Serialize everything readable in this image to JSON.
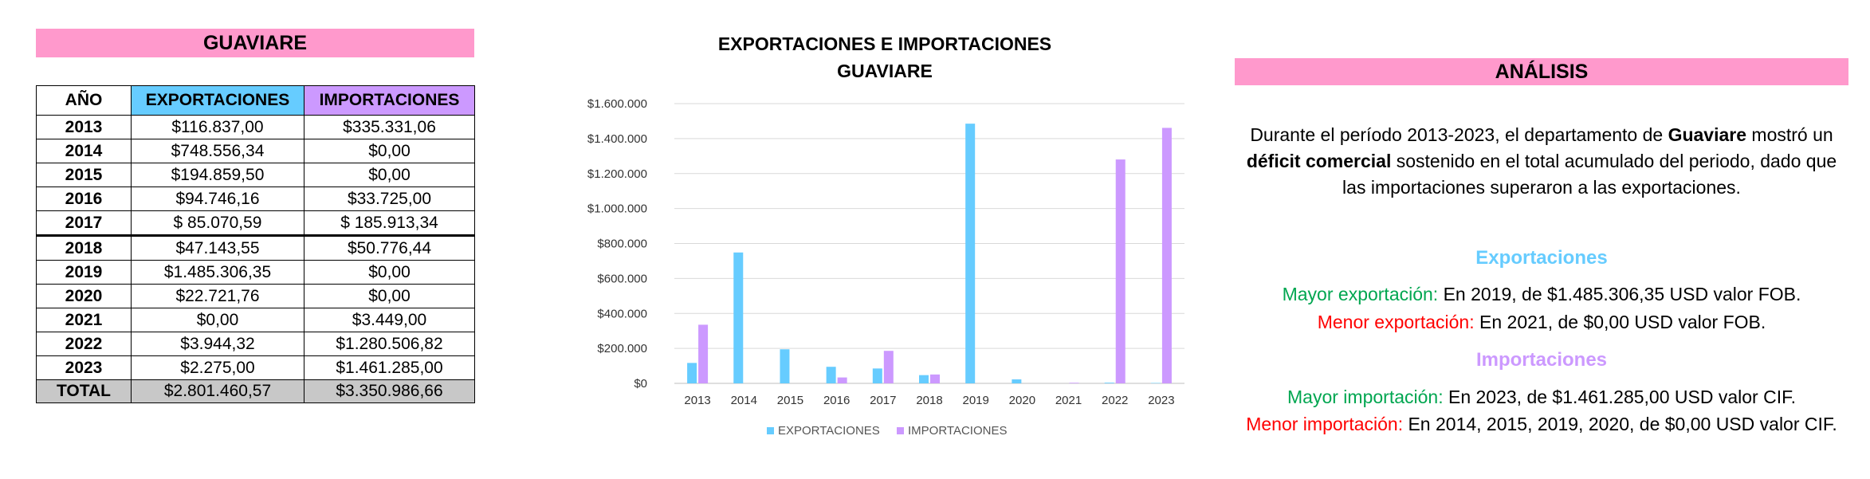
{
  "left": {
    "title": "GUAVIARE",
    "headers": [
      "AÑO",
      "EXPORTACIONES",
      "IMPORTACIONES"
    ],
    "rows": [
      [
        "2013",
        "$116.837,00",
        "$335.331,06"
      ],
      [
        "2014",
        "$748.556,34",
        "$0,00"
      ],
      [
        "2015",
        "$194.859,50",
        "$0,00"
      ],
      [
        "2016",
        "$94.746,16",
        "$33.725,00"
      ],
      [
        "2017",
        "$ 85.070,59",
        "$ 185.913,34"
      ],
      [
        "2018",
        "$47.143,55",
        "$50.776,44"
      ],
      [
        "2019",
        "$1.485.306,35",
        "$0,00"
      ],
      [
        "2020",
        "$22.721,76",
        "$0,00"
      ],
      [
        "2021",
        "$0,00",
        "$3.449,00"
      ],
      [
        "2022",
        "$3.944,32",
        "$1.280.506,82"
      ],
      [
        "2023",
        "$2.275,00",
        "$1.461.285,00"
      ]
    ],
    "total": [
      "TOTAL",
      "$2.801.460,57",
      "$3.350.986,66"
    ]
  },
  "chart_data": {
    "type": "bar",
    "title": "EXPORTACIONES E IMPORTACIONES",
    "subtitle": "GUAVIARE",
    "categories": [
      "2013",
      "2014",
      "2015",
      "2016",
      "2017",
      "2018",
      "2019",
      "2020",
      "2021",
      "2022",
      "2023"
    ],
    "series": [
      {
        "name": "EXPORTACIONES",
        "color": "#66ccff",
        "values": [
          116837.0,
          748556.34,
          194859.5,
          94746.16,
          85070.59,
          47143.55,
          1485306.35,
          22721.76,
          0,
          3944.32,
          2275.0
        ]
      },
      {
        "name": "IMPORTACIONES",
        "color": "#cc99ff",
        "values": [
          335331.06,
          0,
          0,
          33725.0,
          185913.34,
          50776.44,
          0,
          0,
          3449.0,
          1280506.82,
          1461285.0
        ]
      }
    ],
    "yticks": [
      "$0",
      "$200.000",
      "$400.000",
      "$600.000",
      "$800.000",
      "$1.000.000",
      "$1.200.000",
      "$1.400.000",
      "$1.600.000"
    ],
    "ylim": [
      0,
      1600000
    ],
    "grid": true,
    "legend": "bottom"
  },
  "right": {
    "title": "ANÁLISIS",
    "p1_a": "Durante el período 2013-2023, el departamento de ",
    "p1_b": "Guaviare",
    "p1_c": " mostró un ",
    "p1_d": "déficit comercial",
    "p1_e": " sostenido en el total acumulado del periodo, dado que las importaciones superaron a las exportaciones.",
    "exp_heading": "Exportaciones",
    "mayor_exp_label": "Mayor exportación:",
    "mayor_exp_text": " En 2019, de $1.485.306,35 USD valor FOB.",
    "menor_exp_label": "Menor exportación:",
    "menor_exp_text": " En 2021, de $0,00 USD valor FOB.",
    "imp_heading": "Importaciones",
    "mayor_imp_label": "Mayor importación:",
    "mayor_imp_text": " En 2023, de $1.461.285,00 USD valor CIF.",
    "menor_imp_label": "Menor importación:",
    "menor_imp_text": " En 2014, 2015, 2019, 2020, de $0,00 USD valor CIF."
  }
}
